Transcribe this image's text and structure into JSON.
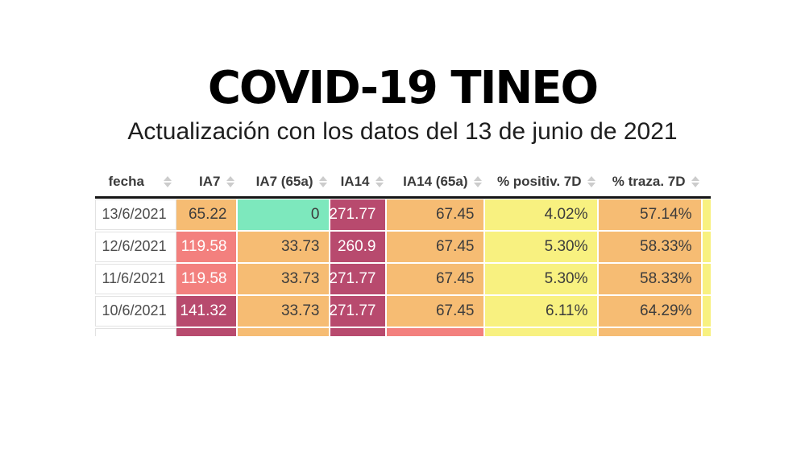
{
  "title": "COVID-19 TINEO",
  "subtitle": "Actualización con los datos del 13 de junio de 2021",
  "colors": {
    "orange": "#f6bc73",
    "salmon": "#f3807e",
    "maroon": "#b84a6e",
    "green": "#7de8bd",
    "yellow": "#f8f180",
    "white": "#ffffff",
    "dark_text": "#3c3c3c",
    "light_text": "#ffffff",
    "date_text": "#4d4d4d",
    "header_text": "#3b3b3b",
    "header_rule": "#161616",
    "sort_icon": "#cccccc",
    "date_cell_border": "#e2e2e2"
  },
  "table": {
    "columns": [
      {
        "label": "fecha",
        "sortable": true
      },
      {
        "label": "IA7",
        "sortable": true
      },
      {
        "label": "IA7 (65a)",
        "sortable": true
      },
      {
        "label": "IA14",
        "sortable": true
      },
      {
        "label": "IA14 (65a)",
        "sortable": true
      },
      {
        "label": "% positiv. 7D",
        "sortable": true
      },
      {
        "label": "% traza. 7D",
        "sortable": true
      }
    ],
    "rows": [
      {
        "fecha": "13/6/2021",
        "values": [
          {
            "text": "65.22",
            "bg": "orange",
            "fg": "dark_text"
          },
          {
            "text": "0",
            "bg": "green",
            "fg": "dark_text"
          },
          {
            "text": "271.77",
            "bg": "maroon",
            "fg": "light_text"
          },
          {
            "text": "67.45",
            "bg": "orange",
            "fg": "dark_text"
          },
          {
            "text": "4.02%",
            "bg": "yellow",
            "fg": "dark_text"
          },
          {
            "text": "57.14%",
            "bg": "orange",
            "fg": "dark_text"
          }
        ],
        "edge": "yellow"
      },
      {
        "fecha": "12/6/2021",
        "values": [
          {
            "text": "119.58",
            "bg": "salmon",
            "fg": "light_text"
          },
          {
            "text": "33.73",
            "bg": "orange",
            "fg": "dark_text"
          },
          {
            "text": "260.9",
            "bg": "maroon",
            "fg": "light_text"
          },
          {
            "text": "67.45",
            "bg": "orange",
            "fg": "dark_text"
          },
          {
            "text": "5.30%",
            "bg": "yellow",
            "fg": "dark_text"
          },
          {
            "text": "58.33%",
            "bg": "orange",
            "fg": "dark_text"
          }
        ],
        "edge": "yellow"
      },
      {
        "fecha": "11/6/2021",
        "values": [
          {
            "text": "119.58",
            "bg": "salmon",
            "fg": "light_text"
          },
          {
            "text": "33.73",
            "bg": "orange",
            "fg": "dark_text"
          },
          {
            "text": "271.77",
            "bg": "maroon",
            "fg": "light_text"
          },
          {
            "text": "67.45",
            "bg": "orange",
            "fg": "dark_text"
          },
          {
            "text": "5.30%",
            "bg": "yellow",
            "fg": "dark_text"
          },
          {
            "text": "58.33%",
            "bg": "orange",
            "fg": "dark_text"
          }
        ],
        "edge": "yellow"
      },
      {
        "fecha": "10/6/2021",
        "values": [
          {
            "text": "141.32",
            "bg": "maroon",
            "fg": "light_text"
          },
          {
            "text": "33.73",
            "bg": "orange",
            "fg": "dark_text"
          },
          {
            "text": "271.77",
            "bg": "maroon",
            "fg": "light_text"
          },
          {
            "text": "67.45",
            "bg": "orange",
            "fg": "dark_text"
          },
          {
            "text": "6.11%",
            "bg": "yellow",
            "fg": "dark_text"
          },
          {
            "text": "64.29%",
            "bg": "orange",
            "fg": "dark_text"
          }
        ],
        "edge": "yellow"
      }
    ],
    "partial_row": {
      "fecha_bg": "white",
      "cell_bgs": [
        "maroon",
        "orange",
        "maroon",
        "salmon",
        "yellow",
        "orange"
      ],
      "edge": "yellow"
    }
  },
  "chart_data": {
    "type": "table",
    "title": "COVID-19 TINEO",
    "subtitle": "Actualización con los datos del 13 de junio de 2021",
    "columns": [
      "fecha",
      "IA7",
      "IA7 (65a)",
      "IA14",
      "IA14 (65a)",
      "% positiv. 7D",
      "% traza. 7D"
    ],
    "rows": [
      [
        "13/6/2021",
        65.22,
        0,
        271.77,
        67.45,
        "4.02%",
        "57.14%"
      ],
      [
        "12/6/2021",
        119.58,
        33.73,
        260.9,
        67.45,
        "5.30%",
        "58.33%"
      ],
      [
        "11/6/2021",
        119.58,
        33.73,
        271.77,
        67.45,
        "5.30%",
        "58.33%"
      ],
      [
        "10/6/2021",
        141.32,
        33.73,
        271.77,
        67.45,
        "6.11%",
        "64.29%"
      ]
    ],
    "legend_position": "none",
    "notes": "cell background color encodes incidence severity; table clipped at right edge and bottom (partial 5th row visible)"
  }
}
